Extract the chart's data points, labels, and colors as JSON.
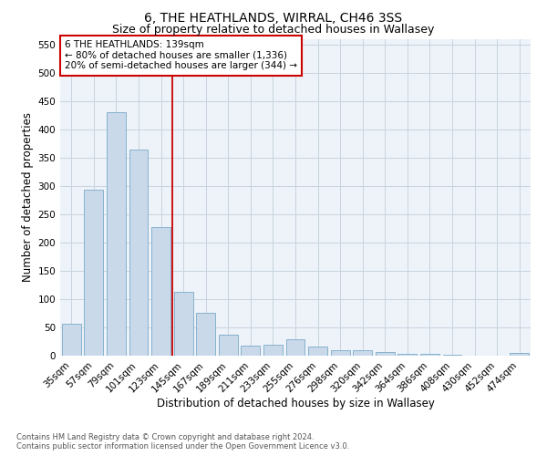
{
  "title1": "6, THE HEATHLANDS, WIRRAL, CH46 3SS",
  "title2": "Size of property relative to detached houses in Wallasey",
  "xlabel": "Distribution of detached houses by size in Wallasey",
  "ylabel": "Number of detached properties",
  "categories": [
    "35sqm",
    "57sqm",
    "79sqm",
    "101sqm",
    "123sqm",
    "145sqm",
    "167sqm",
    "189sqm",
    "211sqm",
    "233sqm",
    "255sqm",
    "276sqm",
    "298sqm",
    "320sqm",
    "342sqm",
    "364sqm",
    "386sqm",
    "408sqm",
    "430sqm",
    "452sqm",
    "474sqm"
  ],
  "values": [
    57,
    293,
    430,
    365,
    228,
    113,
    76,
    37,
    17,
    20,
    29,
    16,
    10,
    9,
    7,
    3,
    4,
    1,
    0,
    0,
    5
  ],
  "bar_color": "#c9d9ea",
  "bar_edge_color": "#7aaac8",
  "vline_x": 4.5,
  "vline_color": "#cc0000",
  "annotation_text": "6 THE HEATHLANDS: 139sqm\n← 80% of detached houses are smaller (1,336)\n20% of semi-detached houses are larger (344) →",
  "annotation_box_color": "#ffffff",
  "annotation_box_edge": "#cc0000",
  "ylim": [
    0,
    560
  ],
  "yticks": [
    0,
    50,
    100,
    150,
    200,
    250,
    300,
    350,
    400,
    450,
    500,
    550
  ],
  "footnote": "Contains HM Land Registry data © Crown copyright and database right 2024.\nContains public sector information licensed under the Open Government Licence v3.0.",
  "bg_color": "#ffffff",
  "plot_bg_color": "#edf3f8",
  "grid_color": "#c8d4e0",
  "title1_fontsize": 10,
  "title2_fontsize": 9,
  "xlabel_fontsize": 8.5,
  "ylabel_fontsize": 8.5,
  "tick_fontsize": 7.5,
  "annot_fontsize": 7.5,
  "footnote_fontsize": 6
}
